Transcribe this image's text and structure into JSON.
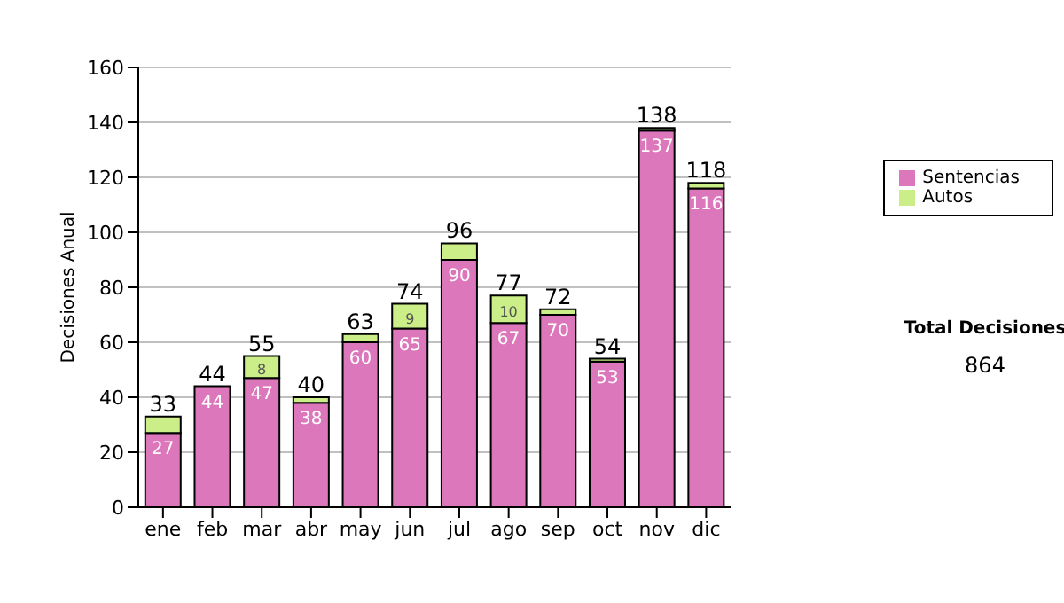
{
  "chart_data": {
    "type": "bar",
    "stacked": true,
    "ylabel": "Decisiones Anual",
    "categories": [
      "ene",
      "feb",
      "mar",
      "abr",
      "may",
      "jun",
      "jul",
      "ago",
      "sep",
      "oct",
      "nov",
      "dic"
    ],
    "series": [
      {
        "name": "Sentencias",
        "color": "#dd77bb",
        "values": [
          27,
          44,
          47,
          38,
          60,
          65,
          90,
          67,
          70,
          53,
          137,
          116
        ],
        "value_labels": [
          "27",
          "44",
          "47",
          "38",
          "60",
          "65",
          "90",
          "67",
          "70",
          "53",
          "137",
          "116"
        ]
      },
      {
        "name": "Autos",
        "color": "#ccee88",
        "values": [
          6,
          0,
          8,
          2,
          3,
          9,
          6,
          10,
          2,
          1,
          1,
          2
        ],
        "value_labels": [
          null,
          null,
          "8",
          null,
          null,
          "9",
          null,
          "10",
          null,
          null,
          null,
          null
        ]
      }
    ],
    "totals": [
      "33",
      "44",
      "55",
      "40",
      "63",
      "74",
      "96",
      "77",
      "72",
      "54",
      "138",
      "118"
    ],
    "ylim": [
      0,
      160
    ],
    "yticks": [
      0,
      20,
      40,
      60,
      80,
      100,
      120,
      140,
      160
    ],
    "grid": "y",
    "legend": "right",
    "annotations": [
      "Total Decisiones",
      "864"
    ]
  }
}
